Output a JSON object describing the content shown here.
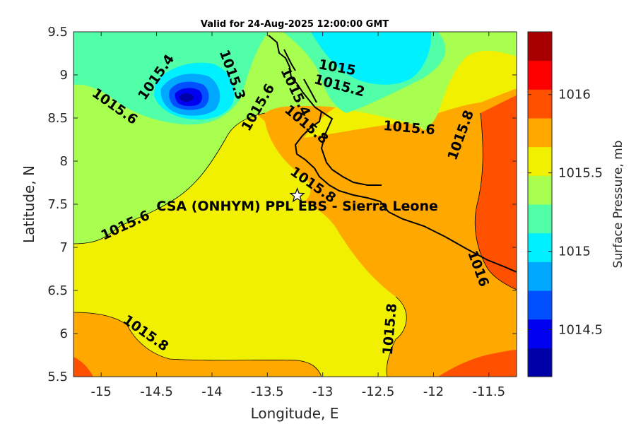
{
  "chart_data": {
    "type": "heatmap",
    "title": "Valid for 24-Aug-2025 12:00:00 GMT",
    "xlabel": "Longitude, E",
    "ylabel": "Latitude, N",
    "xlim": [
      -15.25,
      -11.25
    ],
    "ylim": [
      5.5,
      9.5
    ],
    "x_ticks": [
      -15,
      -14.5,
      -14,
      -13.5,
      -13,
      -12.5,
      -12,
      -11.5
    ],
    "y_ticks": [
      5.5,
      6,
      6.5,
      7,
      7.5,
      8,
      8.5,
      9,
      9.5
    ],
    "colorbar": {
      "label": "Surface Pressure, mb",
      "range": [
        1014.2,
        1016.4
      ],
      "step": 0.1,
      "ticks": [
        1014.5,
        1015,
        1015.5,
        1016
      ],
      "colors": [
        "#0000a8",
        "#0000f0",
        "#0050ff",
        "#00a8ff",
        "#00f0ff",
        "#50ffa8",
        "#a8ff50",
        "#f0f000",
        "#ffa800",
        "#ff5000",
        "#ff0000",
        "#a80000"
      ]
    },
    "contour_labels": [
      {
        "text": "1015.4",
        "lon": -14.5,
        "lat": 8.97
      },
      {
        "text": "1015.6",
        "lon": -14.88,
        "lat": 8.63
      },
      {
        "text": "1015.3",
        "lon": -13.82,
        "lat": 9.0
      },
      {
        "text": "1015.6",
        "lon": -13.58,
        "lat": 8.62
      },
      {
        "text": "1015",
        "lon": -12.87,
        "lat": 9.08
      },
      {
        "text": "1015.2",
        "lon": -12.85,
        "lat": 8.87
      },
      {
        "text": "1015.4",
        "lon": -13.25,
        "lat": 8.8
      },
      {
        "text": "1015.8",
        "lon": -13.15,
        "lat": 8.42
      },
      {
        "text": "1015.6",
        "lon": -12.22,
        "lat": 8.38
      },
      {
        "text": "1015.8",
        "lon": -11.75,
        "lat": 8.3
      },
      {
        "text": "1015.8",
        "lon": -13.09,
        "lat": 7.72
      },
      {
        "text": "1015.6",
        "lon": -14.78,
        "lat": 7.25
      },
      {
        "text": "1016",
        "lon": -11.6,
        "lat": 6.75
      },
      {
        "text": "1015.8",
        "lon": -12.39,
        "lat": 6.05
      },
      {
        "text": "1015.8",
        "lon": -14.6,
        "lat": 6.0
      }
    ],
    "station": {
      "name": "CSA (ONHYM) PPL EBS  - Sierra Leone",
      "lon": -13.23,
      "lat": 7.6
    }
  }
}
